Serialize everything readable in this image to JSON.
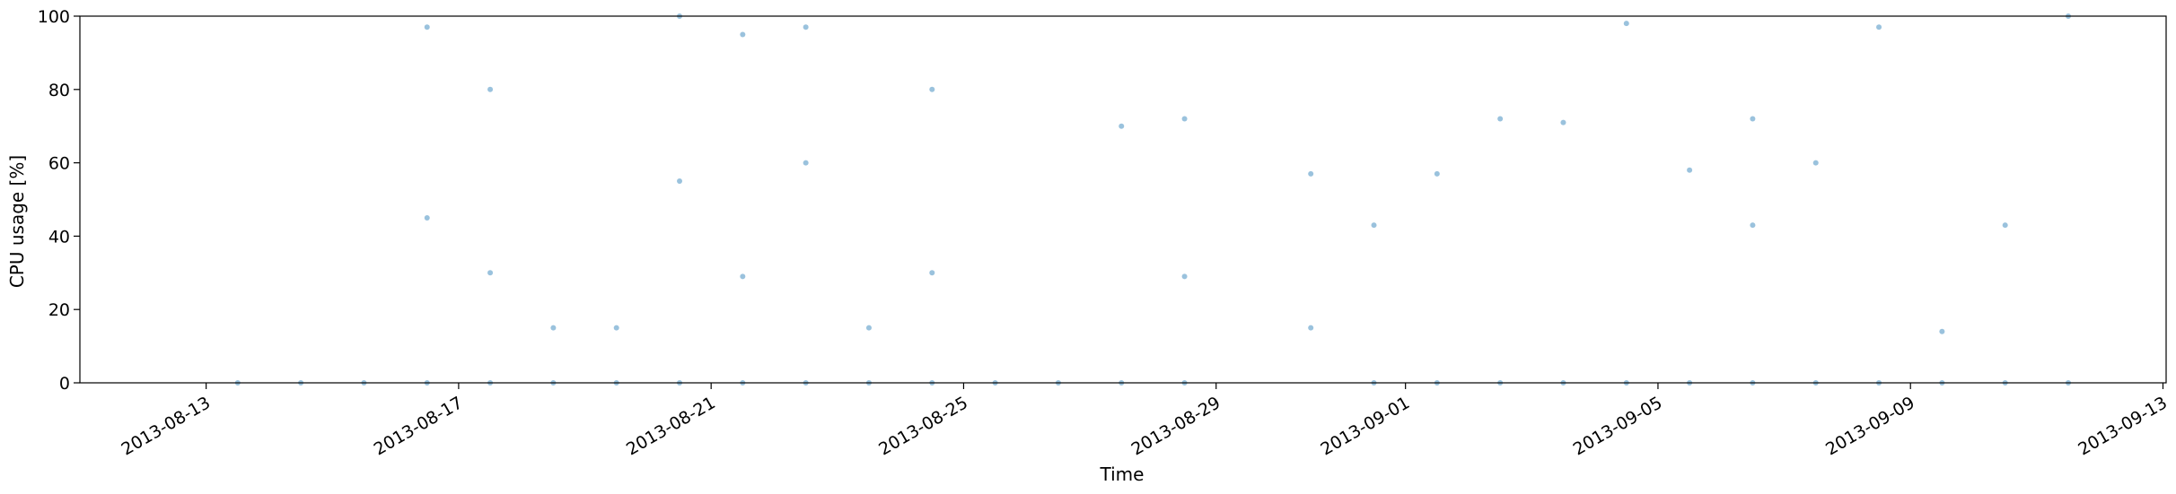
{
  "chart_data": {
    "type": "scatter",
    "xlabel": "Time",
    "ylabel": "CPU usage [%]",
    "xlim": [
      "2013-08-11",
      "2013-09-13"
    ],
    "ylim": [
      0,
      100
    ],
    "x_ticks": [
      "2013-08-13",
      "2013-08-17",
      "2013-08-21",
      "2013-08-25",
      "2013-08-29",
      "2013-09-01",
      "2013-09-05",
      "2013-09-09",
      "2013-09-13"
    ],
    "y_ticks": [
      0,
      20,
      40,
      60,
      80,
      100
    ],
    "grid": false,
    "legend": "none",
    "marker_color": "#1f77b4",
    "marker_alpha": 0.45,
    "series": [
      {
        "x": [
          "2013-08-13",
          "2013-08-14",
          "2013-08-15",
          "2013-08-16",
          "2013-08-16",
          "2013-08-16",
          "2013-08-17",
          "2013-08-17",
          "2013-08-17",
          "2013-08-18",
          "2013-08-18",
          "2013-08-19",
          "2013-08-19",
          "2013-08-20",
          "2013-08-20",
          "2013-08-20",
          "2013-08-21",
          "2013-08-21",
          "2013-08-21",
          "2013-08-22",
          "2013-08-22",
          "2013-08-22",
          "2013-08-23",
          "2013-08-23",
          "2013-08-24",
          "2013-08-24",
          "2013-08-24",
          "2013-08-25",
          "2013-08-26",
          "2013-08-27",
          "2013-08-27",
          "2013-08-28",
          "2013-08-28",
          "2013-08-28",
          "2013-08-30",
          "2013-08-30",
          "2013-08-31",
          "2013-08-31",
          "2013-09-01",
          "2013-09-01",
          "2013-09-02",
          "2013-09-02",
          "2013-09-03",
          "2013-09-03",
          "2013-09-04",
          "2013-09-04",
          "2013-09-05",
          "2013-09-05",
          "2013-09-06",
          "2013-09-06",
          "2013-09-06",
          "2013-09-07",
          "2013-09-07",
          "2013-09-08",
          "2013-09-08",
          "2013-09-09",
          "2013-09-09",
          "2013-09-10",
          "2013-09-10",
          "2013-09-11",
          "2013-09-11"
        ],
        "y": [
          0,
          0,
          0,
          0,
          97,
          45,
          0,
          80,
          30,
          0,
          15,
          0,
          15,
          0,
          100,
          55,
          0,
          95,
          29,
          0,
          60,
          97,
          0,
          15,
          0,
          30,
          80,
          0,
          0,
          0,
          70,
          0,
          72,
          29,
          57,
          15,
          0,
          43,
          0,
          57,
          0,
          72,
          0,
          71,
          0,
          98,
          0,
          58,
          0,
          43,
          72,
          0,
          60,
          0,
          97,
          0,
          14,
          0,
          43,
          0,
          100
        ]
      }
    ]
  }
}
